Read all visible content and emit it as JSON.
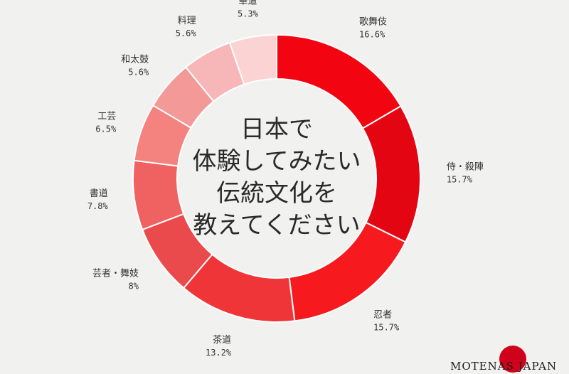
{
  "chart_data": {
    "type": "pie",
    "variant": "donut",
    "center_title": [
      "日本で",
      "体験してみたい",
      "伝統文化を",
      "教えてください"
    ],
    "slices": [
      {
        "label": "歌舞伎",
        "value": 16.6,
        "value_text": "16.6%",
        "color": "#f20411"
      },
      {
        "label": "侍・殺陣",
        "value": 15.7,
        "value_text": "15.7%",
        "color": "#e30512"
      },
      {
        "label": "忍者",
        "value": 15.7,
        "value_text": "15.7%",
        "color": "#f61a1e"
      },
      {
        "label": "茶道",
        "value": 13.2,
        "value_text": "13.2%",
        "color": "#ef3538"
      },
      {
        "label": "芸者・舞妓",
        "value": 8,
        "value_text": "8%",
        "color": "#ea4a4c"
      },
      {
        "label": "書道",
        "value": 7.8,
        "value_text": "7.8%",
        "color": "#ef6261"
      },
      {
        "label": "工芸",
        "value": 6.5,
        "value_text": "6.5%",
        "color": "#f4827e"
      },
      {
        "label": "和太鼓",
        "value": 5.6,
        "value_text": "5.6%",
        "color": "#f39a99"
      },
      {
        "label": "料理",
        "value": 5.6,
        "value_text": "5.6%",
        "color": "#f7b6b7"
      },
      {
        "label": "華道",
        "value": 5.3,
        "value_text": "5.3%",
        "color": "#fbd3d3"
      }
    ]
  },
  "logo": {
    "text": "MOTENAS JAPAN",
    "circle_color": "#d0021b"
  }
}
